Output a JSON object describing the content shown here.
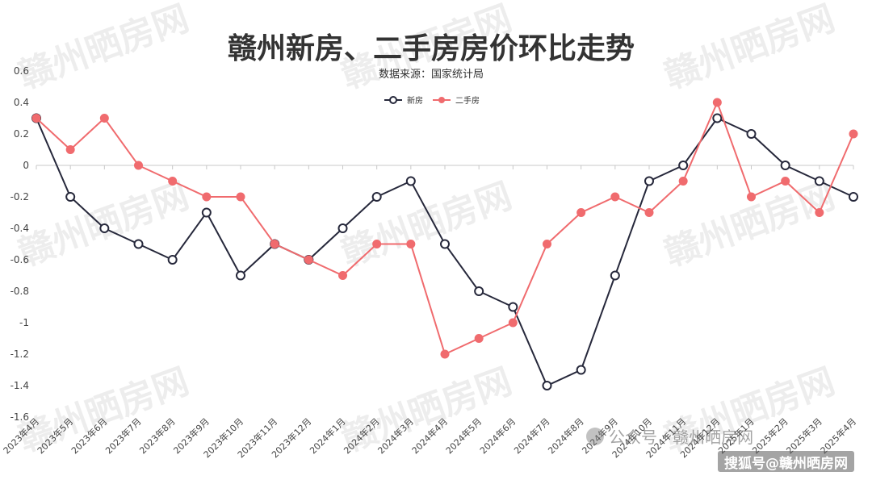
{
  "watermark": "赣州晒房网",
  "source_mark": "搜狐号@赣州晒房网",
  "wechat_label": "公众号 · 赣州晒房网",
  "colors": {
    "series_new": "#26283b",
    "series_second": "#f06b6e",
    "axis": "#c8c8c8"
  },
  "chart_data": {
    "type": "line",
    "title": "赣州新房、二手房房价环比走势",
    "subtitle": "数据来源：国家统计局",
    "legend_position": "top-center",
    "grid": false,
    "ylim": [
      -1.6,
      0.6
    ],
    "yticks": [
      0.6,
      0.4,
      0.2,
      0,
      -0.2,
      -0.4,
      -0.6,
      -0.8,
      -1,
      -1.2,
      -1.4,
      -1.6
    ],
    "categories": [
      "2023年4月",
      "2023年5月",
      "2023年6月",
      "2023年7月",
      "2023年8月",
      "2023年9月",
      "2023年10月",
      "2023年11月",
      "2023年12月",
      "2024年1月",
      "2024年2月",
      "2024年3月",
      "2024年4月",
      "2024年5月",
      "2024年6月",
      "2024年7月",
      "2024年8月",
      "2024年9月",
      "2024年10月",
      "2024年11月",
      "2024年12月",
      "2025年1月",
      "2025年2月",
      "2025年3月",
      "2025年4月"
    ],
    "series": [
      {
        "name": "新房",
        "marker": "hollow-circle",
        "values": [
          0.3,
          -0.2,
          -0.4,
          -0.5,
          -0.6,
          -0.3,
          -0.7,
          -0.5,
          -0.6,
          -0.4,
          -0.2,
          -0.1,
          -0.5,
          -0.8,
          -0.9,
          -1.4,
          -1.3,
          -0.7,
          -0.1,
          0.0,
          0.3,
          0.2,
          0.0,
          -0.1,
          -0.2
        ]
      },
      {
        "name": "二手房",
        "marker": "filled-circle",
        "values": [
          0.3,
          0.1,
          0.3,
          0.0,
          -0.1,
          -0.2,
          -0.2,
          -0.5,
          -0.6,
          -0.7,
          -0.5,
          -0.5,
          -1.2,
          -1.1,
          -1.0,
          -0.5,
          -0.3,
          -0.2,
          -0.3,
          -0.1,
          0.4,
          -0.2,
          -0.1,
          -0.3,
          0.2
        ]
      }
    ]
  }
}
